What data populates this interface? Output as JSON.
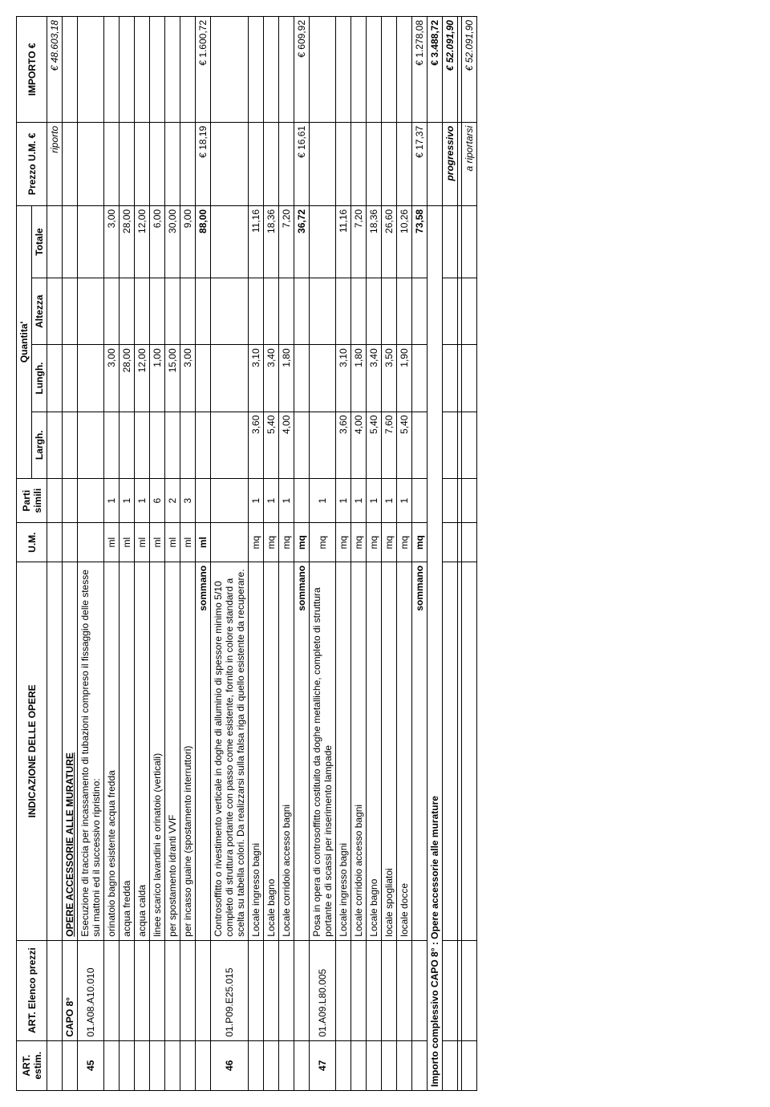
{
  "headers": {
    "estim": "ART. estim.",
    "art": "ART. Elenco prezzi",
    "ind": "INDICAZIONE DELLE OPERE",
    "um": "U.M.",
    "parti": "Parti simili",
    "quantita": "Quantita'",
    "largh": "Largh.",
    "lungh": "Lungh.",
    "alt": "Altezza",
    "tot": "Totale",
    "prezzo": "Prezzo U.M. €",
    "importo": "IMPORTO €"
  },
  "riporto": {
    "label": "riporto",
    "val": "€ 48.603,18"
  },
  "capo": {
    "code": "CAPO 8°",
    "title": "OPERE ACCESSORIE ALLE MURATURE"
  },
  "item45": {
    "num": "45",
    "code": "01.A08.A10.010",
    "desc": "Esecuzione di traccia per incassamento di tubazioni compreso il fissaggio delle stesse sui mattoni ed il successivo ripristino:",
    "rows": [
      {
        "d": "orinatoio bagno esistente acqua fredda",
        "um": "ml",
        "p": "1",
        "lu": "3,00",
        "t": "3,00"
      },
      {
        "d": "acqua fredda",
        "um": "ml",
        "p": "1",
        "lu": "28,00",
        "t": "28,00"
      },
      {
        "d": "acqua calda",
        "um": "ml",
        "p": "1",
        "lu": "12,00",
        "t": "12,00"
      },
      {
        "d": "linee scarico lavandini e orinatoio (verticali)",
        "um": "ml",
        "p": "6",
        "lu": "1,00",
        "t": "6,00"
      },
      {
        "d": "per spostamento idranti VVF",
        "um": "ml",
        "p": "2",
        "lu": "15,00",
        "t": "30,00"
      },
      {
        "d": "per incasso guaine (spostamento interruttori)",
        "um": "ml",
        "p": "3",
        "lu": "3,00",
        "t": "9,00"
      }
    ],
    "sum": {
      "label": "sommano",
      "um": "ml",
      "t": "88,00",
      "pr": "€ 18,19",
      "imp": "€ 1.600,72"
    }
  },
  "item46": {
    "num": "46",
    "code": "01.P09.E25.015",
    "desc": "Controsoffitto o rivestimento verticale in doghe di alluminio di spessore minimo 5/10 completo di struttura portante con passo come esistente, fornito in colore standard a scelta su tabella colori. Da realizzarsi sulla falsa riga di quello esistente da recuperare.",
    "rows": [
      {
        "d": "Locale ingresso bagni",
        "um": "mq",
        "p": "1",
        "la": "3,60",
        "lu": "3,10",
        "t": "11,16"
      },
      {
        "d": "Locale bagno",
        "um": "mq",
        "p": "1",
        "la": "5,40",
        "lu": "3,40",
        "t": "18,36"
      },
      {
        "d": "Locale corridoio accesso bagni",
        "um": "mq",
        "p": "1",
        "la": "4,00",
        "lu": "1,80",
        "t": "7,20"
      }
    ],
    "sum": {
      "label": "sommano",
      "um": "mq",
      "t": "36,72",
      "pr": "€ 16,61",
      "imp": "€ 609,92"
    }
  },
  "item47": {
    "num": "47",
    "code": "01.A09.L80.005",
    "desc": "Posa in opera di controsoffitto costituito da doghe metalliche, completo di struttura portante e di scassi per inserimento lampade",
    "descUm": "mq",
    "descP": "1",
    "rows": [
      {
        "d": "Locale ingresso bagni",
        "um": "mq",
        "p": "1",
        "la": "3,60",
        "lu": "3,10",
        "t": "11,16"
      },
      {
        "d": "Locale corridoio accesso bagni",
        "um": "mq",
        "p": "1",
        "la": "4,00",
        "lu": "1,80",
        "t": "7,20"
      },
      {
        "d": "Locale bagno",
        "um": "mq",
        "p": "1",
        "la": "5,40",
        "lu": "3,40",
        "t": "18,36"
      },
      {
        "d": "locale spogliatoi",
        "um": "mq",
        "p": "1",
        "la": "7,60",
        "lu": "3,50",
        "t": "26,60"
      },
      {
        "d": "locale docce",
        "um": "mq",
        "p": "1",
        "la": "5,40",
        "lu": "1,90",
        "t": "10,26"
      }
    ],
    "sum": {
      "label": "sommano",
      "um": "mq",
      "t": "73,58",
      "pr": "€ 17,37",
      "imp": "€ 1.278,08"
    }
  },
  "totCapo": {
    "label": "Importo complessivo CAPO 8° : Opere accessorie alle murature",
    "val": "€ 3.488,72"
  },
  "prog": {
    "label": "progressivo",
    "val": "€ 52.091,90"
  },
  "arip": {
    "label": "a riportarsi",
    "val": "€ 52.091,90"
  }
}
